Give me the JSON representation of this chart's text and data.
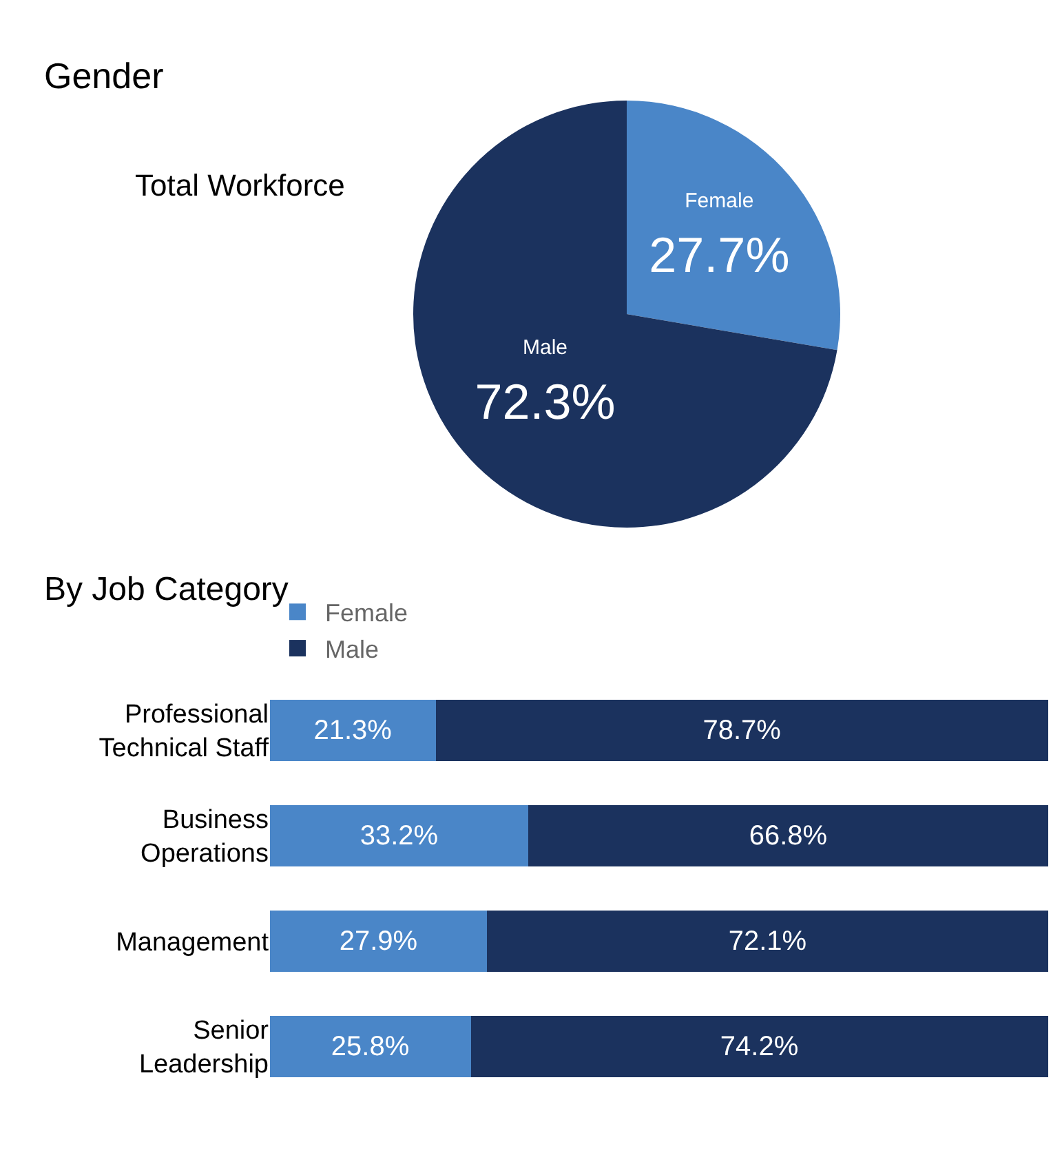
{
  "chart_data": [
    {
      "type": "pie",
      "title": "Gender",
      "subtitle": "Total Workforce",
      "categories": [
        "Female",
        "Male"
      ],
      "values": [
        27.7,
        72.3
      ],
      "colors": [
        "#4a86c8",
        "#1b325e"
      ],
      "value_labels": [
        "27.7%",
        "72.3%"
      ],
      "legend": false
    },
    {
      "type": "bar",
      "title": "By Job Category",
      "orientation": "horizontal",
      "stacked": true,
      "categories": [
        "Professional Technical Staff",
        "Business Operations",
        "Management",
        "Senior Leadership"
      ],
      "series": [
        {
          "name": "Female",
          "color": "#4a86c8",
          "values": [
            21.3,
            33.2,
            27.9,
            25.8
          ],
          "value_labels": [
            "21.3%",
            "33.2%",
            "27.9%",
            "25.8%"
          ]
        },
        {
          "name": "Male",
          "color": "#1b325e",
          "values": [
            78.7,
            66.8,
            72.1,
            74.2
          ],
          "value_labels": [
            "78.7%",
            "66.8%",
            "72.1%",
            "74.2%"
          ]
        }
      ],
      "xlim": [
        0,
        100
      ],
      "tick_labels": "y",
      "legend": "top",
      "grid": false
    }
  ]
}
